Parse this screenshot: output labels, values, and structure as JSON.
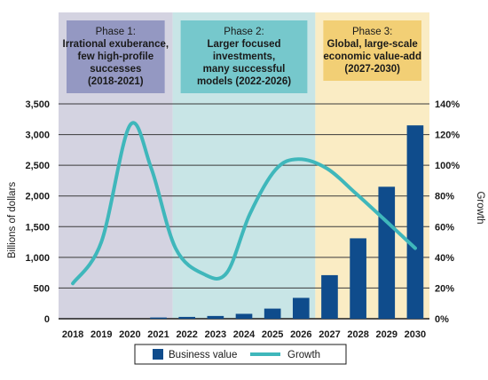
{
  "chart_data": {
    "type": "bar",
    "categories": [
      "2018",
      "2019",
      "2020",
      "2021",
      "2022",
      "2023",
      "2024",
      "2025",
      "2026",
      "2027",
      "2028",
      "2029",
      "2030"
    ],
    "series": [
      {
        "name": "Business value",
        "type": "bar",
        "axis": "left",
        "values": [
          0,
          0,
          0,
          20,
          30,
          45,
          80,
          165,
          340,
          710,
          1310,
          2150,
          3150
        ],
        "color": "#0f4c8c"
      },
      {
        "name": "Growth",
        "type": "line",
        "axis": "right",
        "unit": "%",
        "values": [
          23,
          50,
          126,
          98,
          46,
          29,
          30,
          68,
          97,
          104,
          98,
          82,
          65,
          46
        ],
        "x": [
          2018,
          2019,
          2020,
          2020.75,
          2021.6,
          2022.6,
          2023.4,
          2024.2,
          2025.1,
          2025.9,
          2026.9,
          2027.9,
          2028.9,
          2030
        ],
        "color": "#3fb7bb"
      }
    ],
    "ylabel": "Billions of dollars",
    "y2label": "Growth",
    "ylim": [
      0,
      3500
    ],
    "y2lim": [
      0,
      140
    ],
    "yticks": [
      "0",
      "500",
      "1,000",
      "1,500",
      "2,000",
      "2,500",
      "3,000",
      "3,500"
    ],
    "y2ticks": [
      "0%",
      "20%",
      "40%",
      "60%",
      "80%",
      "100%",
      "120%",
      "140%"
    ],
    "grid": true,
    "legend": "bottom-center",
    "phases": [
      {
        "title": "Phase 1:",
        "lines": [
          "Irrational exuberance,",
          "few high-profile",
          "successes",
          "(2018-2021)"
        ],
        "bg": "#d4d3e1",
        "box": "#9498c2",
        "span": [
          "2018",
          "2021"
        ]
      },
      {
        "title": "Phase 2:",
        "lines": [
          "Larger focused",
          "investments,",
          "many successful",
          "models (2022-2026)"
        ],
        "bg": "#c8e5e6",
        "box": "#76c8cc",
        "span": [
          "2022",
          "2026"
        ]
      },
      {
        "title": "Phase 3:",
        "lines": [
          "Global, large-scale",
          "economic value-add",
          "(2027-2030)"
        ],
        "bg": "#faecc4",
        "box": "#f2cf75",
        "span": [
          "2027",
          "2030"
        ]
      }
    ]
  }
}
